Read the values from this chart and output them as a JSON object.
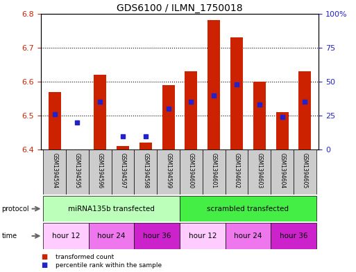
{
  "title": "GDS6100 / ILMN_1750018",
  "samples": [
    "GSM1394594",
    "GSM1394595",
    "GSM1394596",
    "GSM1394597",
    "GSM1394598",
    "GSM1394599",
    "GSM1394600",
    "GSM1394601",
    "GSM1394602",
    "GSM1394603",
    "GSM1394604",
    "GSM1394605"
  ],
  "transformed_count": [
    6.57,
    6.4,
    6.62,
    6.41,
    6.42,
    6.59,
    6.63,
    6.78,
    6.73,
    6.6,
    6.51,
    6.63
  ],
  "percentile_rank": [
    26,
    20,
    35,
    10,
    10,
    30,
    35,
    40,
    48,
    33,
    24,
    35
  ],
  "ylim_left": [
    6.4,
    6.8
  ],
  "ylim_right": [
    0,
    100
  ],
  "yticks_left": [
    6.4,
    6.5,
    6.6,
    6.7,
    6.8
  ],
  "yticks_right": [
    0,
    25,
    50,
    75,
    100
  ],
  "ytick_labels_right": [
    "0",
    "25",
    "50",
    "75",
    "100%"
  ],
  "bar_color": "#cc2200",
  "dot_color": "#2222cc",
  "bar_width": 0.55,
  "protocol_groups": [
    {
      "label": "miRNA135b transfected",
      "start": 0,
      "end": 6,
      "color": "#bbffbb"
    },
    {
      "label": "scrambled transfected",
      "start": 6,
      "end": 12,
      "color": "#44ee44"
    }
  ],
  "time_groups": [
    {
      "label": "hour 12",
      "start": 0,
      "end": 2,
      "color": "#ffccff"
    },
    {
      "label": "hour 24",
      "start": 2,
      "end": 4,
      "color": "#ee77ee"
    },
    {
      "label": "hour 36",
      "start": 4,
      "end": 6,
      "color": "#cc22cc"
    },
    {
      "label": "hour 12",
      "start": 6,
      "end": 8,
      "color": "#ffccff"
    },
    {
      "label": "hour 24",
      "start": 8,
      "end": 10,
      "color": "#ee77ee"
    },
    {
      "label": "hour 36",
      "start": 10,
      "end": 12,
      "color": "#cc22cc"
    }
  ],
  "legend_items": [
    {
      "label": "transformed count",
      "color": "#cc2200"
    },
    {
      "label": "percentile rank within the sample",
      "color": "#2222cc"
    }
  ],
  "bg_color": "#ffffff",
  "left_axis_color": "#cc2200",
  "right_axis_color": "#2222cc",
  "sample_bg": "#cccccc",
  "fig_width": 5.13,
  "fig_height": 3.93,
  "dpi": 100
}
